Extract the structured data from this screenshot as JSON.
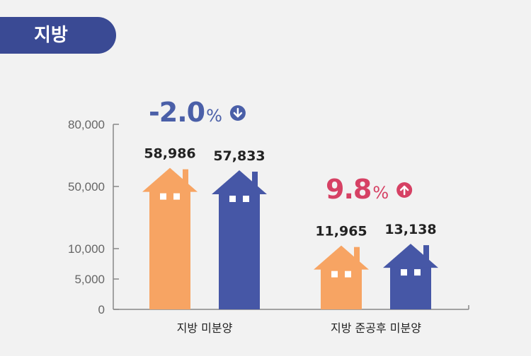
{
  "header": {
    "title": "지방"
  },
  "chart_data": {
    "type": "bar",
    "categories": [
      "지방 미분양",
      "지방 준공후 미분양"
    ],
    "series": [
      {
        "values": [
          58986,
          11965
        ]
      },
      {
        "values": [
          57833,
          13138
        ]
      }
    ],
    "data_labels": [
      [
        "58,986",
        "57,833"
      ],
      [
        "11,965",
        "13,138"
      ]
    ],
    "y_ticks": [
      {
        "value": 0,
        "label": "0"
      },
      {
        "value": 5000,
        "label": "5,000"
      },
      {
        "value": 10000,
        "label": "10,000"
      },
      {
        "value": 50000,
        "label": "50,000"
      },
      {
        "value": 80000,
        "label": "80,000"
      }
    ],
    "changes": [
      {
        "number": "-2.0",
        "unit": "%",
        "direction": "down",
        "color": "#4a5fa8"
      },
      {
        "number": "9.8",
        "unit": "%",
        "direction": "up",
        "color": "#d64164"
      }
    ],
    "colors": {
      "series1": "#f7a463",
      "series2": "#4657a6",
      "axis": "#888888"
    }
  }
}
